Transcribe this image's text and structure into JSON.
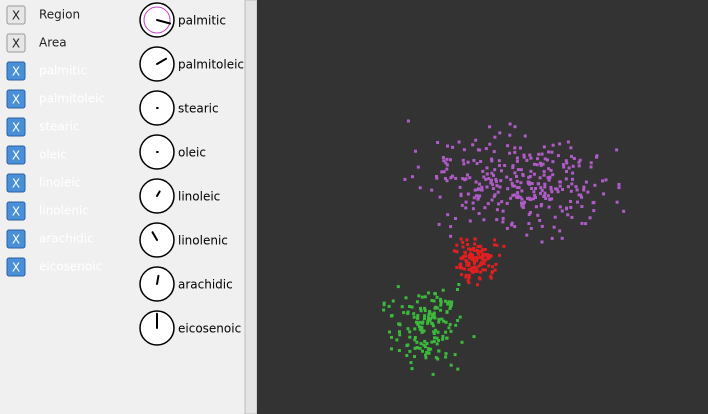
{
  "variables": [
    {
      "label": "Region",
      "checked": false
    },
    {
      "label": "Area",
      "checked": false
    },
    {
      "label": "palmitic",
      "checked": true
    },
    {
      "label": "palmitoleic",
      "checked": true
    },
    {
      "label": "stearic",
      "checked": true
    },
    {
      "label": "oleic",
      "checked": true
    },
    {
      "label": "linoleic",
      "checked": true
    },
    {
      "label": "linolenic",
      "checked": true
    },
    {
      "label": "arachidic",
      "checked": true
    },
    {
      "label": "eicosenoic",
      "checked": true
    }
  ],
  "box_mark": "X",
  "dials": [
    {
      "label": "palmitic",
      "angle": -15,
      "length": 0.9,
      "selected": true
    },
    {
      "label": "palmitoleic",
      "angle": 30,
      "length": 0.7,
      "selected": false
    },
    {
      "label": "stearic",
      "angle": 0,
      "length": 0.05,
      "selected": false
    },
    {
      "label": "oleic",
      "angle": 0,
      "length": 0.05,
      "selected": false
    },
    {
      "label": "linoleic",
      "angle": 60,
      "length": 0.35,
      "selected": false
    },
    {
      "label": "linolenic",
      "angle": 120,
      "length": 0.6,
      "selected": false
    },
    {
      "label": "arachidic",
      "angle": 80,
      "length": 0.55,
      "selected": false
    },
    {
      "label": "eicosenoic",
      "angle": 90,
      "length": 0.95,
      "selected": false
    }
  ]
}
